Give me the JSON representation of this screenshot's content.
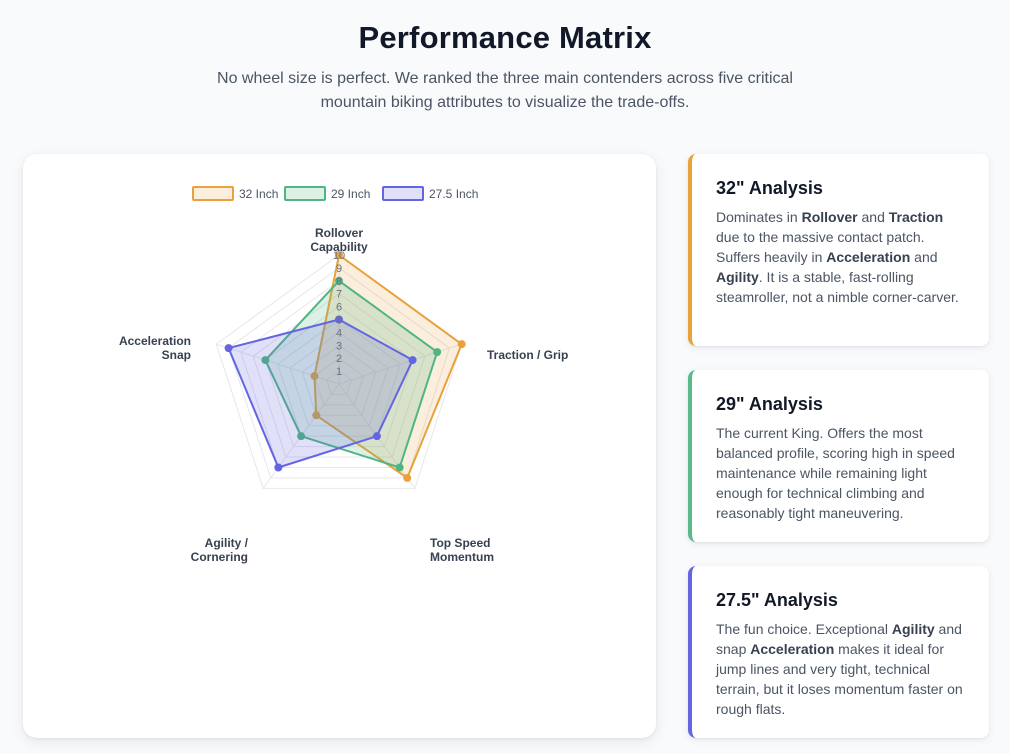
{
  "header": {
    "title": "Performance Matrix",
    "subtitle": "No wheel size is perfect. We ranked the three main contenders across five critical mountain biking attributes to visualize the trade-offs."
  },
  "chart_data": {
    "type": "radar",
    "title": "",
    "axes": [
      [
        "Rollover",
        "Capability"
      ],
      [
        "Traction / Grip"
      ],
      [
        "Top Speed",
        "Momentum"
      ],
      [
        "Agility /",
        "Cornering"
      ],
      [
        "Acceleration",
        "Snap"
      ]
    ],
    "range": [
      0,
      10
    ],
    "ticks": [
      "1",
      "2",
      "3",
      "4",
      "5",
      "6",
      "7",
      "8",
      "9",
      "10"
    ],
    "grid": true,
    "legend_position": "top",
    "series": [
      {
        "name": "32 Inch",
        "values": [
          10,
          10,
          9,
          3,
          2
        ],
        "color": "#e9a23b",
        "fill": "rgba(233,162,59,0.18)"
      },
      {
        "name": "29 Inch",
        "values": [
          8,
          8,
          8,
          5,
          6
        ],
        "color": "#4fb583",
        "fill": "rgba(79,181,131,0.20)"
      },
      {
        "name": "27.5 Inch",
        "values": [
          5,
          6,
          5,
          8,
          9
        ],
        "color": "#6366e0",
        "fill": "rgba(99,102,224,0.20)"
      }
    ]
  },
  "analysis": [
    {
      "title": "32\" Analysis",
      "color": "#e9a23b",
      "parts": [
        "Dominates in ",
        "Rollover",
        " and ",
        "Traction",
        " due to the massive contact patch. Suffers heavily in ",
        "Acceleration",
        " and ",
        "Agility",
        ". It is a stable, fast-rolling steamroller, not a nimble corner-carver."
      ]
    },
    {
      "title": "29\" Analysis",
      "color": "#5bb98c",
      "text": "The current King. Offers the most balanced profile, scoring high in speed maintenance while remaining light enough for technical climbing and reasonably tight maneuvering."
    },
    {
      "title": "27.5\" Analysis",
      "color": "#6366e0",
      "parts": [
        "The fun choice. Exceptional ",
        "Agility",
        " and snap ",
        "Acceleration",
        " makes it ideal for jump lines and very tight, technical terrain, but it loses momentum faster on rough flats."
      ]
    }
  ]
}
